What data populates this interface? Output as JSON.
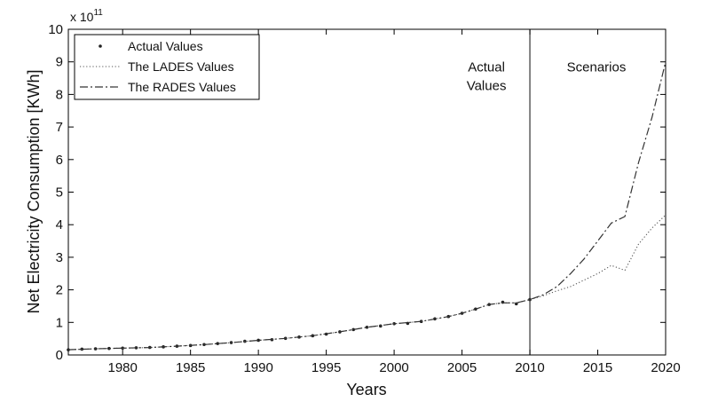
{
  "chart_data": {
    "type": "line",
    "xlabel": "Years",
    "ylabel": "Net Electricity Consumption [KWh]",
    "y_multiplier": "x 10",
    "y_multiplier_exp": "11",
    "xlim": [
      1976,
      2020
    ],
    "ylim": [
      0,
      10
    ],
    "x_ticks": [
      1980,
      1985,
      1990,
      1995,
      2000,
      2005,
      2010,
      2015,
      2020
    ],
    "y_ticks": [
      0,
      1,
      2,
      3,
      4,
      5,
      6,
      7,
      8,
      9,
      10
    ],
    "grid": false,
    "legend_position": "top-left",
    "vertical_line": {
      "x": 2010
    },
    "annotations": [
      {
        "id": "actual",
        "lines": [
          "Actual",
          "Values"
        ],
        "x": 2006.8,
        "y": 8.7
      },
      {
        "id": "scenarios",
        "lines": [
          "Scenarios"
        ],
        "x": 2014.9,
        "y": 8.7
      }
    ],
    "series": [
      {
        "name": "Actual Values",
        "style": "markers",
        "x": [
          1976,
          1977,
          1978,
          1979,
          1980,
          1981,
          1982,
          1983,
          1984,
          1985,
          1986,
          1987,
          1988,
          1989,
          1990,
          1991,
          1992,
          1993,
          1994,
          1995,
          1996,
          1997,
          1998,
          1999,
          2000,
          2001,
          2002,
          2003,
          2004,
          2005,
          2006,
          2007,
          2008,
          2009,
          2010
        ],
        "values": [
          0.16,
          0.18,
          0.19,
          0.2,
          0.21,
          0.22,
          0.23,
          0.25,
          0.27,
          0.29,
          0.32,
          0.35,
          0.38,
          0.42,
          0.45,
          0.47,
          0.51,
          0.55,
          0.59,
          0.64,
          0.71,
          0.78,
          0.85,
          0.89,
          0.96,
          0.97,
          1.03,
          1.11,
          1.18,
          1.28,
          1.41,
          1.55,
          1.62,
          1.57,
          1.7
        ]
      },
      {
        "name": "The LADES Values",
        "style": "dotted",
        "x": [
          1976,
          1978,
          1980,
          1982,
          1984,
          1986,
          1988,
          1990,
          1992,
          1994,
          1996,
          1998,
          2000,
          2002,
          2004,
          2005,
          2006,
          2007,
          2008,
          2009,
          2010,
          2011,
          2012,
          2013,
          2014,
          2015,
          2016,
          2017,
          2018,
          2019,
          2020
        ],
        "values": [
          0.16,
          0.19,
          0.21,
          0.23,
          0.27,
          0.32,
          0.38,
          0.45,
          0.51,
          0.59,
          0.71,
          0.85,
          0.96,
          1.03,
          1.18,
          1.28,
          1.41,
          1.55,
          1.6,
          1.6,
          1.7,
          1.82,
          1.97,
          2.1,
          2.3,
          2.5,
          2.75,
          2.6,
          3.4,
          3.9,
          4.3
        ]
      },
      {
        "name": "The RADES Values",
        "style": "dashdot",
        "x": [
          1976,
          1978,
          1980,
          1982,
          1984,
          1986,
          1988,
          1990,
          1992,
          1994,
          1996,
          1998,
          2000,
          2002,
          2004,
          2005,
          2006,
          2007,
          2008,
          2009,
          2010,
          2011,
          2012,
          2013,
          2014,
          2015,
          2016,
          2017,
          2018,
          2019,
          2020
        ],
        "values": [
          0.16,
          0.19,
          0.21,
          0.23,
          0.27,
          0.32,
          0.38,
          0.45,
          0.51,
          0.59,
          0.71,
          0.85,
          0.96,
          1.03,
          1.18,
          1.28,
          1.41,
          1.55,
          1.6,
          1.6,
          1.7,
          1.85,
          2.1,
          2.5,
          2.95,
          3.5,
          4.05,
          4.25,
          5.9,
          7.3,
          9.0
        ]
      }
    ]
  }
}
